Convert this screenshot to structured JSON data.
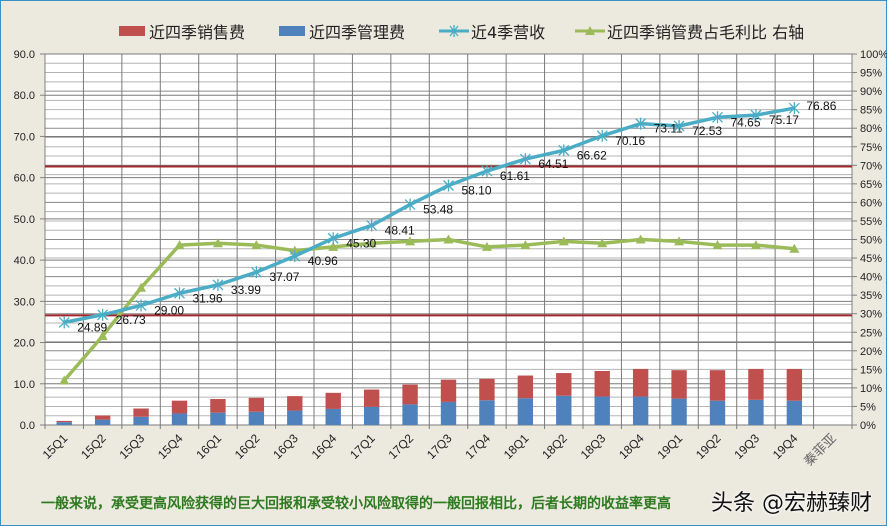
{
  "chart_data": {
    "type": "bar+line",
    "title": "",
    "categories": [
      "15Q1",
      "15Q2",
      "15Q3",
      "15Q4",
      "16Q1",
      "16Q2",
      "16Q3",
      "16Q4",
      "17Q1",
      "17Q2",
      "17Q3",
      "17Q4",
      "18Q1",
      "18Q2",
      "18Q3",
      "18Q4",
      "19Q1",
      "19Q2",
      "19Q3",
      "19Q4"
    ],
    "extra_category_label": "秦菲亚",
    "left_axis": {
      "min": 0,
      "max": 90,
      "step": 10,
      "ticks": [
        "0.0",
        "10.0",
        "20.0",
        "30.0",
        "40.0",
        "50.0",
        "60.0",
        "70.0",
        "80.0",
        "90.0"
      ]
    },
    "right_axis": {
      "min": 0,
      "max": 100,
      "step": 5,
      "ticks": [
        "0%",
        "5%",
        "10%",
        "15%",
        "20%",
        "25%",
        "30%",
        "35%",
        "40%",
        "45%",
        "50%",
        "55%",
        "60%",
        "65%",
        "70%",
        "75%",
        "80%",
        "85%",
        "90%",
        "95%",
        "100%"
      ]
    },
    "series": [
      {
        "name": "近四季销售费",
        "type": "stacked-bar",
        "axis": "left",
        "color": "#c0504d",
        "values": [
          0.3,
          1.0,
          2.0,
          3.1,
          3.3,
          3.4,
          3.5,
          3.9,
          4.2,
          4.8,
          5.4,
          5.2,
          5.5,
          5.5,
          6.2,
          6.7,
          6.9,
          7.4,
          7.5,
          7.7
        ]
      },
      {
        "name": "近四季管理费",
        "type": "stacked-bar",
        "axis": "left",
        "color": "#4f81bd",
        "values": [
          0.7,
          1.3,
          2.0,
          2.8,
          3.0,
          3.2,
          3.5,
          3.9,
          4.4,
          5.0,
          5.6,
          6.0,
          6.5,
          7.1,
          6.9,
          6.9,
          6.4,
          5.9,
          6.1,
          5.9
        ]
      },
      {
        "name": "近4季营收",
        "type": "line",
        "axis": "left",
        "color": "#4bacc6",
        "marker": "asterisk",
        "values": [
          24.89,
          26.73,
          29.0,
          31.96,
          33.99,
          37.07,
          40.96,
          45.3,
          48.41,
          53.48,
          58.1,
          61.61,
          64.51,
          66.62,
          70.16,
          73.11,
          72.53,
          74.65,
          75.17,
          76.86
        ],
        "labels": [
          "24.89",
          "26.73",
          "29.00",
          "31.96",
          "33.99",
          "37.07",
          "40.96",
          "45.30",
          "48.41",
          "53.48",
          "58.10",
          "61.61",
          "64.51",
          "66.62",
          "70.16",
          "73.11",
          "72.53",
          "74.65",
          "75.17",
          "76.86"
        ]
      },
      {
        "name": "近四季销管费占毛利比 右轴",
        "type": "line",
        "axis": "right",
        "color": "#9bbb59",
        "marker": "triangle",
        "values": [
          12,
          24,
          37,
          48.5,
          49,
          48.5,
          47,
          48,
          49,
          49.5,
          50,
          48,
          48.5,
          49.5,
          49,
          50,
          49.5,
          48.5,
          48.5,
          47.5
        ]
      }
    ],
    "reference_lines": [
      {
        "axis": "left",
        "value": 62.7,
        "color": "#a0282c"
      },
      {
        "axis": "left",
        "value": 26.6,
        "color": "#a0282c"
      }
    ],
    "legend_position": "top",
    "grid": true
  },
  "legend": [
    {
      "label": "近四季销售费",
      "color": "#c0504d",
      "kind": "box"
    },
    {
      "label": "近四季管理费",
      "color": "#4f81bd",
      "kind": "box"
    },
    {
      "label": "近4季营收",
      "color": "#4bacc6",
      "kind": "line-asterisk"
    },
    {
      "label": "近四季销管费占毛利比 右轴",
      "color": "#9bbb59",
      "kind": "line-triangle"
    }
  ],
  "footer": {
    "text": "一般来说，承受更高风险获得的巨大回报和承受较小风险取得的一般回报相比，后者长期的收益率更高"
  },
  "watermark": {
    "text": "头条 @宏赫臻财"
  }
}
